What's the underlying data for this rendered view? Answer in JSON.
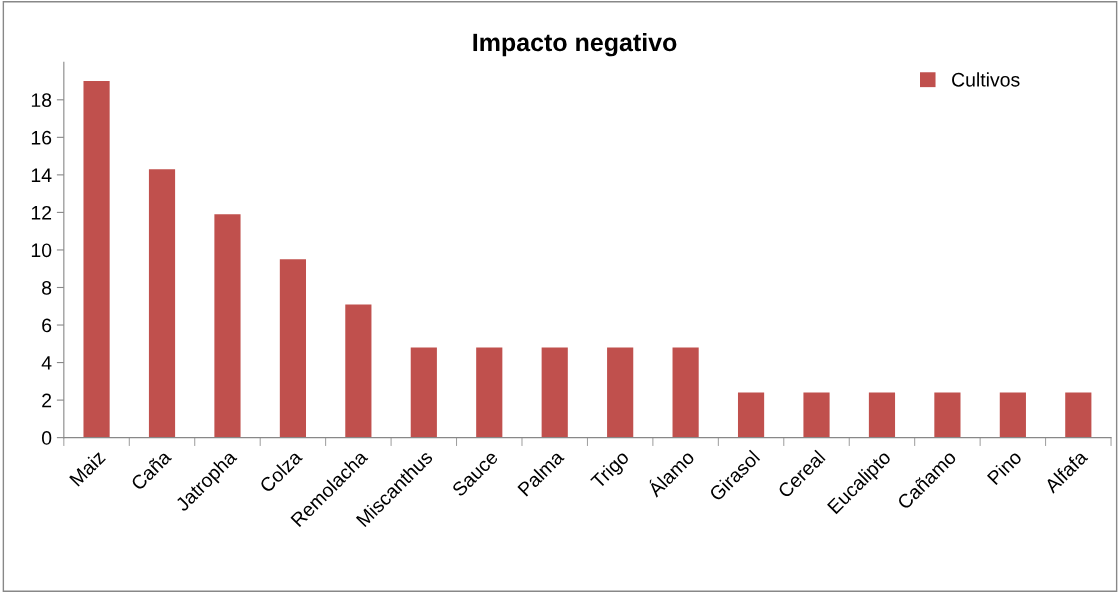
{
  "chart_data": {
    "type": "bar",
    "title": "Impacto negativo",
    "categories": [
      "Maiz",
      "Caña",
      "Jatropha",
      "Colza",
      "Remolacha",
      "Miscanthus",
      "Sauce",
      "Palma",
      "Trigo",
      "Álamo",
      "Girasol",
      "Cereal",
      "Eucalipto",
      "Cañamo",
      "Pino",
      "Alfafa"
    ],
    "series": [
      {
        "name": "Cultivos",
        "color": "#c0504d",
        "values": [
          19.0,
          14.3,
          11.9,
          9.5,
          7.1,
          4.8,
          4.8,
          4.8,
          4.8,
          4.8,
          2.4,
          2.4,
          2.4,
          2.4,
          2.4,
          2.4
        ]
      }
    ],
    "ylim": [
      0,
      20
    ],
    "yticks": [
      0,
      2,
      4,
      6,
      8,
      10,
      12,
      14,
      16,
      18
    ],
    "grid": false,
    "legend": "top right"
  }
}
